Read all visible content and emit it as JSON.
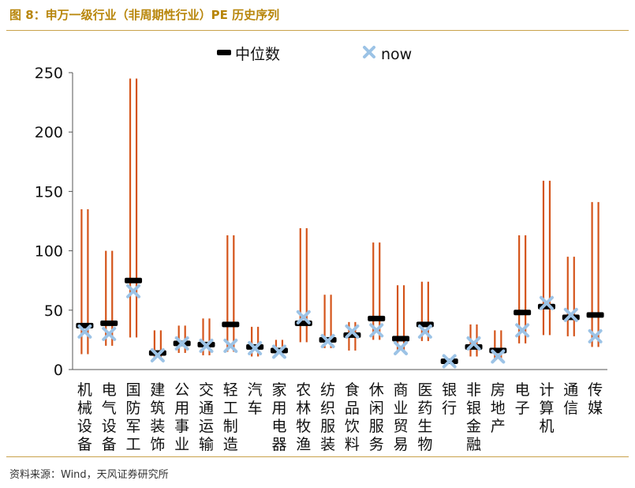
{
  "title": "图 8：申万一级行业（非周期性行业）PE 历史序列",
  "source": "资料来源：Wind，天风证券研究所",
  "colors": {
    "range": "#d4541a",
    "median": "#000000",
    "now": "#9cc3e6",
    "accent": "#b8860b"
  },
  "chart_data": {
    "type": "bar",
    "title": "",
    "xlabel": "",
    "ylabel": "",
    "ylim": [
      0,
      250
    ],
    "yticks": [
      0,
      50,
      100,
      150,
      200,
      250
    ],
    "grid": false,
    "legend_position": "top-center",
    "legend": [
      "中位数",
      "now"
    ],
    "categories": [
      "机械设备",
      "电气设备",
      "国防军工",
      "建筑装饰",
      "公用事业",
      "交通运输",
      "轻工制造",
      "汽车",
      "家用电器",
      "农林牧渔",
      "纺织服装",
      "食品饮料",
      "休闲服务",
      "商业贸易",
      "医药生物",
      "银行",
      "非银金融",
      "房地产",
      "电子",
      "计算机",
      "通信",
      "传媒"
    ],
    "series": [
      {
        "name": "range_low",
        "values": [
          13,
          20,
          27,
          9,
          14,
          12,
          15,
          11,
          11,
          23,
          18,
          16,
          25,
          15,
          24,
          5,
          11,
          8,
          22,
          29,
          28,
          19
        ]
      },
      {
        "name": "range_high",
        "values": [
          135,
          100,
          245,
          33,
          37,
          43,
          113,
          36,
          25,
          119,
          63,
          40,
          107,
          71,
          74,
          10,
          38,
          33,
          113,
          159,
          95,
          141
        ]
      },
      {
        "name": "中位数",
        "values": [
          37,
          39,
          75,
          14,
          22,
          21,
          38,
          19,
          16,
          39,
          25,
          29,
          43,
          26,
          38,
          7,
          19,
          16,
          48,
          53,
          44,
          46
        ]
      },
      {
        "name": "now",
        "values": [
          32,
          30,
          66,
          12,
          22,
          20,
          20,
          18,
          15,
          44,
          24,
          32,
          33,
          18,
          32,
          7,
          22,
          11,
          33,
          56,
          46,
          28
        ]
      }
    ]
  }
}
